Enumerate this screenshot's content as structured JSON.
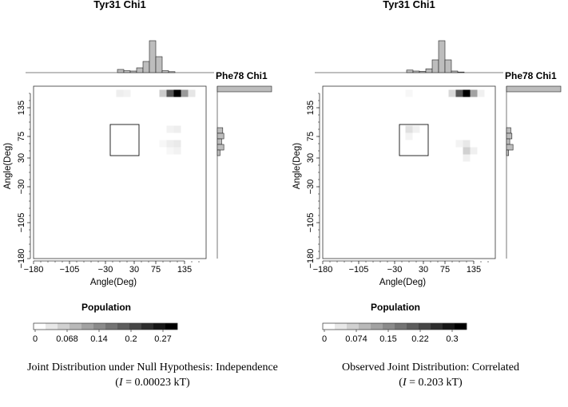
{
  "chart_data": [
    {
      "type": "heatmap",
      "title": "Tyr31 Chi1",
      "side_title": "Phe78 Chi1",
      "xlabel": "Angle(Deg)",
      "ylabel": "Angle(Deg)",
      "xlim": [
        -180,
        180
      ],
      "ylim": [
        -180,
        180
      ],
      "xticks": [
        "−180",
        "−105",
        "−30",
        "30",
        "75",
        "135"
      ],
      "yticks": [
        "135",
        "75",
        "30",
        "−30",
        "−105",
        "−180"
      ],
      "xtick_values": [
        -180,
        -105,
        -30,
        30,
        75,
        135
      ],
      "ytick_values": [
        135,
        75,
        30,
        -30,
        -105,
        -180
      ],
      "cells": [
        {
          "x": 105,
          "y": 165,
          "v": 0.2
        },
        {
          "x": 120,
          "y": 165,
          "v": 0.3
        },
        {
          "x": 135,
          "y": 165,
          "v": 0.12
        },
        {
          "x": 90,
          "y": 165,
          "v": 0.06
        },
        {
          "x": 150,
          "y": 165,
          "v": 0.03
        },
        {
          "x": 0,
          "y": 165,
          "v": 0.02
        },
        {
          "x": 15,
          "y": 165,
          "v": 0.015
        },
        {
          "x": 105,
          "y": 90,
          "v": 0.015
        },
        {
          "x": 120,
          "y": 90,
          "v": 0.02
        },
        {
          "x": 105,
          "y": 60,
          "v": 0.02
        },
        {
          "x": 120,
          "y": 60,
          "v": 0.025
        },
        {
          "x": 90,
          "y": 60,
          "v": 0.01
        },
        {
          "x": 105,
          "y": 45,
          "v": 0.01
        },
        {
          "x": 120,
          "y": 45,
          "v": 0.015
        }
      ],
      "highlight_box": {
        "x": [
          -20,
          40
        ],
        "y": [
          35,
          100
        ]
      },
      "colorbar": {
        "label": "Population",
        "ticks": [
          "0",
          "0.068",
          "0.14",
          "0.2",
          "0.27"
        ],
        "max": 0.3
      },
      "caption": "Joint Distribution under Null Hypothesis: Independence",
      "stat_label": "I",
      "stat_value": " = 0.00023 kT)",
      "top_hist": [
        0.1,
        0.06,
        0.05,
        0.15,
        0.35,
        1.0,
        0.5,
        0.06,
        0.03
      ],
      "side_hist": [
        1.0,
        0.1,
        0.12,
        0.08,
        0.12,
        0.05
      ]
    },
    {
      "type": "heatmap",
      "title": "Tyr31 Chi1",
      "side_title": "Phe78 Chi1",
      "xlabel": "Angle(Deg)",
      "ylabel": "Angle(Deg)",
      "xlim": [
        -180,
        180
      ],
      "ylim": [
        -180,
        180
      ],
      "xticks": [
        "−180",
        "−105",
        "−30",
        "30",
        "75",
        "135"
      ],
      "yticks": [
        "135",
        "75",
        "30",
        "−30",
        "−105",
        "−180"
      ],
      "xtick_values": [
        -180,
        -105,
        -30,
        30,
        75,
        135
      ],
      "ytick_values": [
        135,
        75,
        30,
        -30,
        -105,
        -180
      ],
      "cells": [
        {
          "x": 105,
          "y": 165,
          "v": 0.22
        },
        {
          "x": 120,
          "y": 165,
          "v": 0.33
        },
        {
          "x": 135,
          "y": 165,
          "v": 0.12
        },
        {
          "x": 90,
          "y": 165,
          "v": 0.05
        },
        {
          "x": 150,
          "y": 165,
          "v": 0.02
        },
        {
          "x": 0,
          "y": 165,
          "v": 0.01
        },
        {
          "x": 0,
          "y": 90,
          "v": 0.04
        },
        {
          "x": 15,
          "y": 90,
          "v": 0.02
        },
        {
          "x": 0,
          "y": 75,
          "v": 0.015
        },
        {
          "x": 120,
          "y": 60,
          "v": 0.03
        },
        {
          "x": 105,
          "y": 60,
          "v": 0.015
        },
        {
          "x": 120,
          "y": 45,
          "v": 0.06
        },
        {
          "x": 135,
          "y": 45,
          "v": 0.02
        },
        {
          "x": 120,
          "y": 30,
          "v": 0.02
        }
      ],
      "highlight_box": {
        "x": [
          -20,
          40
        ],
        "y": [
          35,
          100
        ]
      },
      "colorbar": {
        "label": "Population",
        "ticks": [
          "0",
          "0.074",
          "0.15",
          "0.22",
          "0.3"
        ],
        "max": 0.33
      },
      "caption": "Observed Joint Distribution: Correlated",
      "stat_label": "I",
      "stat_value": " = 0.203 kT)",
      "top_hist": [
        0.08,
        0.05,
        0.04,
        0.12,
        0.4,
        1.0,
        0.4,
        0.05,
        0.02
      ],
      "side_hist": [
        1.0,
        0.08,
        0.1,
        0.06,
        0.12,
        0.04
      ]
    }
  ]
}
